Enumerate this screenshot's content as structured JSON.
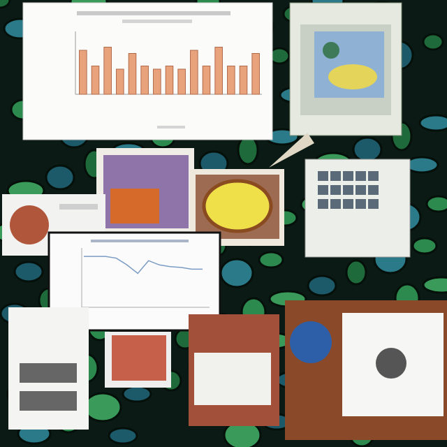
{
  "charts": [
    {
      "type": "bar",
      "color": "#e8a27c",
      "values": [
        14,
        9,
        15,
        8,
        13,
        9,
        8,
        9,
        8,
        14,
        9,
        15,
        9,
        9,
        13
      ],
      "ylim": [
        0,
        20
      ]
    },
    {
      "type": "line",
      "color": "#7a9bc4",
      "values": [
        60,
        60,
        60,
        58,
        50,
        40,
        55,
        50,
        48,
        47,
        45,
        45
      ],
      "ylim": [
        0,
        70
      ]
    }
  ]
}
